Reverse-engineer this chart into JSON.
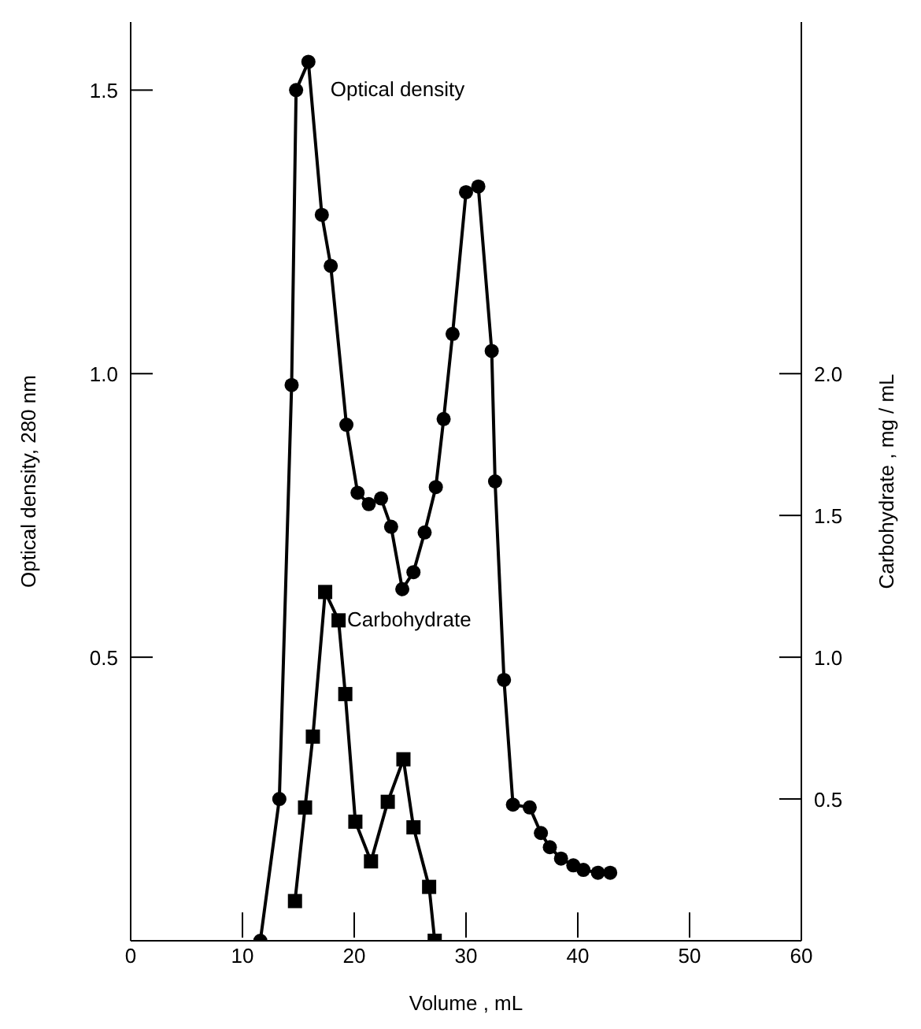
{
  "chart_data": {
    "type": "line",
    "xlabel": "Volume ,   mL",
    "ylabel": "Optical density,    280 nm",
    "y2label": "Carbohydrate ,    mg / mL",
    "xlim": [
      0,
      60
    ],
    "xticks": [
      0,
      10,
      20,
      30,
      40,
      50,
      60
    ],
    "ylim": [
      0,
      1.62
    ],
    "yticks": [
      {
        "value": 0.5,
        "label": "0.5"
      },
      {
        "value": 1,
        "label": "1.0"
      },
      {
        "value": 1.5,
        "label": "1.5"
      }
    ],
    "y2lim": [
      0,
      3.24
    ],
    "y2ticks": [
      {
        "value": 0.5,
        "label": "0.5"
      },
      {
        "value": 1,
        "label": "1.0"
      },
      {
        "value": 1.5,
        "label": "1.5"
      },
      {
        "value": 2,
        "label": "2.0"
      }
    ],
    "line_style": "solid",
    "series": [
      {
        "name": "Optical density",
        "color": "#000000",
        "marker": "circle",
        "x": [
          11.6,
          13.3,
          14.4,
          14.8,
          15.9,
          17.1,
          17.9,
          19.3,
          20.3,
          21.3,
          22.4,
          23.3,
          24.3,
          25.3,
          26.3,
          27.3,
          28.0,
          28.8,
          30.0,
          31.1,
          32.3,
          32.6,
          33.4,
          34.2,
          35.7,
          36.7,
          37.5,
          38.5,
          39.6,
          40.5,
          41.8,
          42.9
        ],
        "values": [
          0,
          0.25,
          0.98,
          1.5,
          1.55,
          1.28,
          1.19,
          0.91,
          0.79,
          0.77,
          0.78,
          0.73,
          0.62,
          0.65,
          0.72,
          0.8,
          0.92,
          1.07,
          1.32,
          1.33,
          1.04,
          0.81,
          0.46,
          0.24,
          0.235,
          0.19,
          0.165,
          0.145,
          0.133,
          0.125,
          0.12,
          0.12
        ]
      },
      {
        "name": "Carbohydrate",
        "color": "#000000",
        "marker": "square",
        "axis": "y2",
        "x": [
          14.7,
          15.6,
          16.3,
          17.4,
          18.6,
          19.2,
          20.1,
          21.5,
          23.0,
          24.4,
          25.3,
          26.7,
          27.2
        ],
        "values": [
          0.14,
          0.47,
          0.72,
          1.23,
          1.13,
          0.87,
          0.42,
          0.28,
          0.49,
          0.64,
          0.4,
          0.19,
          0
        ]
      }
    ]
  }
}
